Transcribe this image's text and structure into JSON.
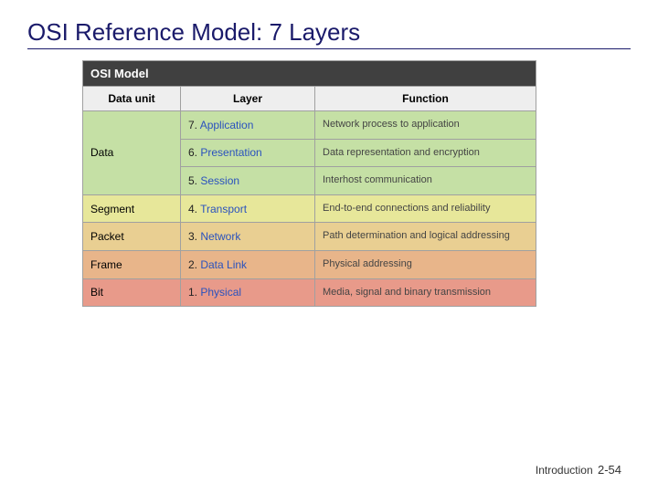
{
  "title": "OSI Reference Model: 7 Layers",
  "table_caption": "OSI Model",
  "headers": {
    "data_unit": "Data unit",
    "layer": "Layer",
    "function": "Function"
  },
  "col_widths": {
    "data_unit": 90,
    "layer": 130,
    "function": 225
  },
  "colors": {
    "caption_bg": "#404040",
    "caption_fg": "#ffffff",
    "header_bg": "#eeeeee",
    "border": "#a0a0a0",
    "layer_link": "#2a52be",
    "func_text": "#444444"
  },
  "rows": [
    {
      "data_unit": "Data",
      "data_unit_rowspan": 3,
      "layer_num": "7.",
      "layer_name": "Application",
      "function": "Network process to application",
      "bg": "#c5e0a5"
    },
    {
      "data_unit": "",
      "data_unit_rowspan": 0,
      "layer_num": "6.",
      "layer_name": "Presentation",
      "function": "Data representation and encryption",
      "bg": "#c5e0a5"
    },
    {
      "data_unit": "",
      "data_unit_rowspan": 0,
      "layer_num": "5.",
      "layer_name": "Session",
      "function": "Interhost communication",
      "bg": "#c5e0a5"
    },
    {
      "data_unit": "Segment",
      "data_unit_rowspan": 1,
      "layer_num": "4.",
      "layer_name": "Transport",
      "function": "End-to-end connections and reliability",
      "bg": "#e7e79a"
    },
    {
      "data_unit": "Packet",
      "data_unit_rowspan": 1,
      "layer_num": "3.",
      "layer_name": "Network",
      "function": "Path determination and logical addressing",
      "bg": "#e9cf92"
    },
    {
      "data_unit": "Frame",
      "data_unit_rowspan": 1,
      "layer_num": "2.",
      "layer_name": "Data Link",
      "function": "Physical addressing",
      "bg": "#e8b58a"
    },
    {
      "data_unit": "Bit",
      "data_unit_rowspan": 1,
      "layer_num": "1.",
      "layer_name": "Physical",
      "function": "Media, signal and binary transmission",
      "bg": "#e89a8a"
    }
  ],
  "footer": {
    "label": "Introduction",
    "page": "2-54"
  }
}
